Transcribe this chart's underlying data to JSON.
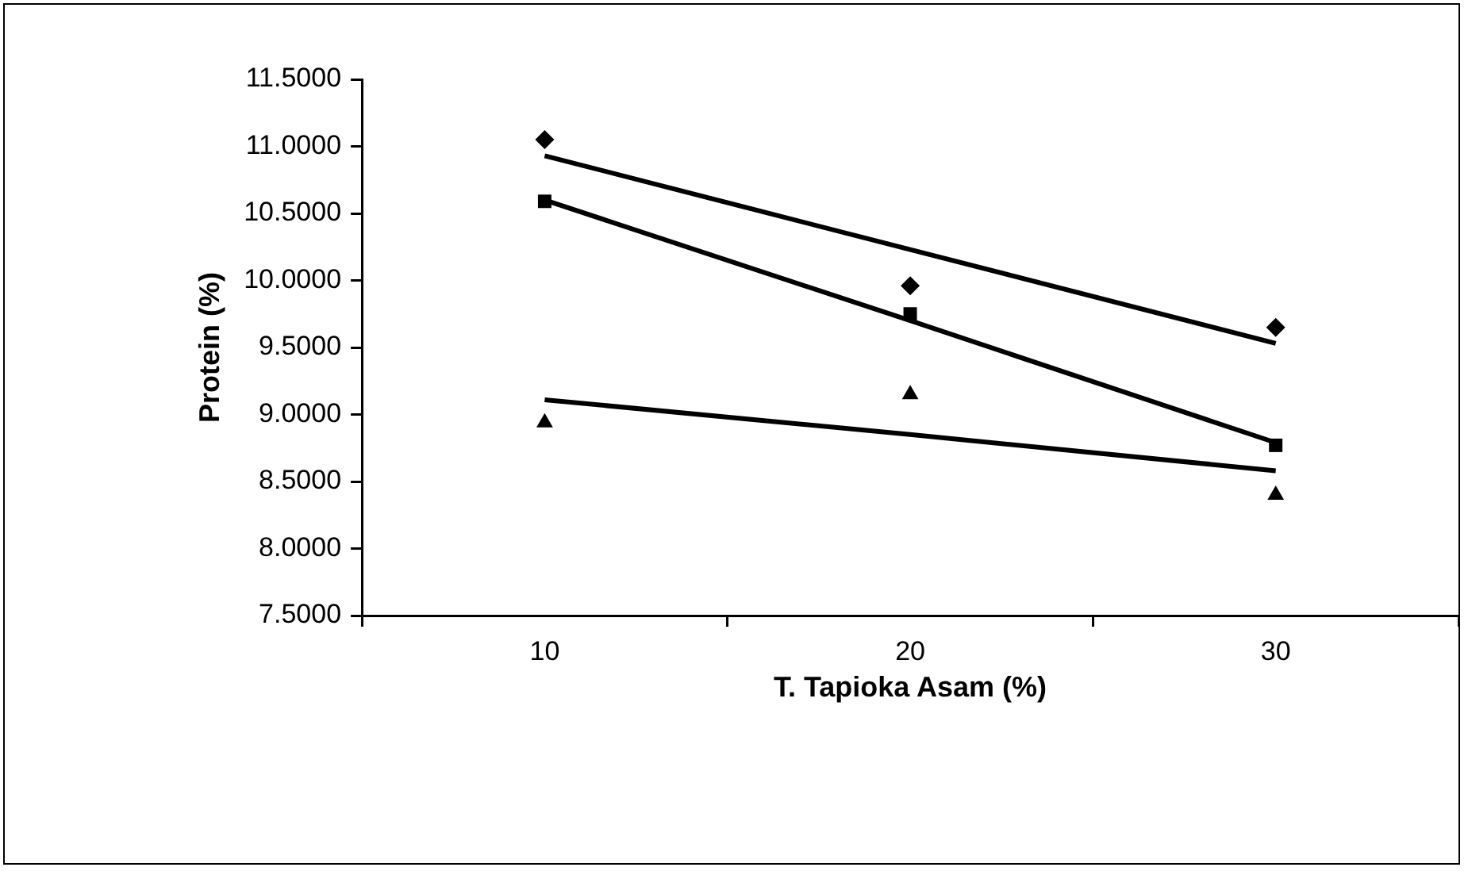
{
  "chart_data": {
    "type": "scatter",
    "xlabel": "T. Tapioka Asam (%)",
    "ylabel": "Protein (%)",
    "categories": [
      "10",
      "20",
      "30"
    ],
    "ylim": [
      7.5,
      11.5
    ],
    "yticks": [
      {
        "value": 7.5,
        "label": "7.5000"
      },
      {
        "value": 8,
        "label": "8.0000"
      },
      {
        "value": 8.5,
        "label": "8.5000"
      },
      {
        "value": 9,
        "label": "9.0000"
      },
      {
        "value": 9.5,
        "label": "9.5000"
      },
      {
        "value": 10,
        "label": "10.0000"
      },
      {
        "value": 10.5,
        "label": "10.5000"
      },
      {
        "value": 11,
        "label": "11.0000"
      },
      {
        "value": 11.5,
        "label": "11.5000"
      }
    ],
    "grid": false,
    "legend": false,
    "series": [
      {
        "marker": "diamond",
        "color": "#000000",
        "values": [
          11.05,
          9.96,
          9.65
        ]
      },
      {
        "marker": "square",
        "color": "#000000",
        "values": [
          10.59,
          9.75,
          8.77
        ]
      },
      {
        "marker": "triangle",
        "color": "#000000",
        "values": [
          8.94,
          9.15,
          8.4
        ]
      },
      {
        "type": "line",
        "marker": "none",
        "color": "#000000",
        "values": [
          10.93,
          10.23,
          9.53
        ]
      },
      {
        "type": "line",
        "marker": "none",
        "color": "#000000",
        "values": [
          10.6,
          9.7,
          8.79
        ]
      },
      {
        "type": "line",
        "marker": "none",
        "color": "#000000",
        "values": [
          9.11,
          8.85,
          8.58
        ]
      }
    ]
  }
}
